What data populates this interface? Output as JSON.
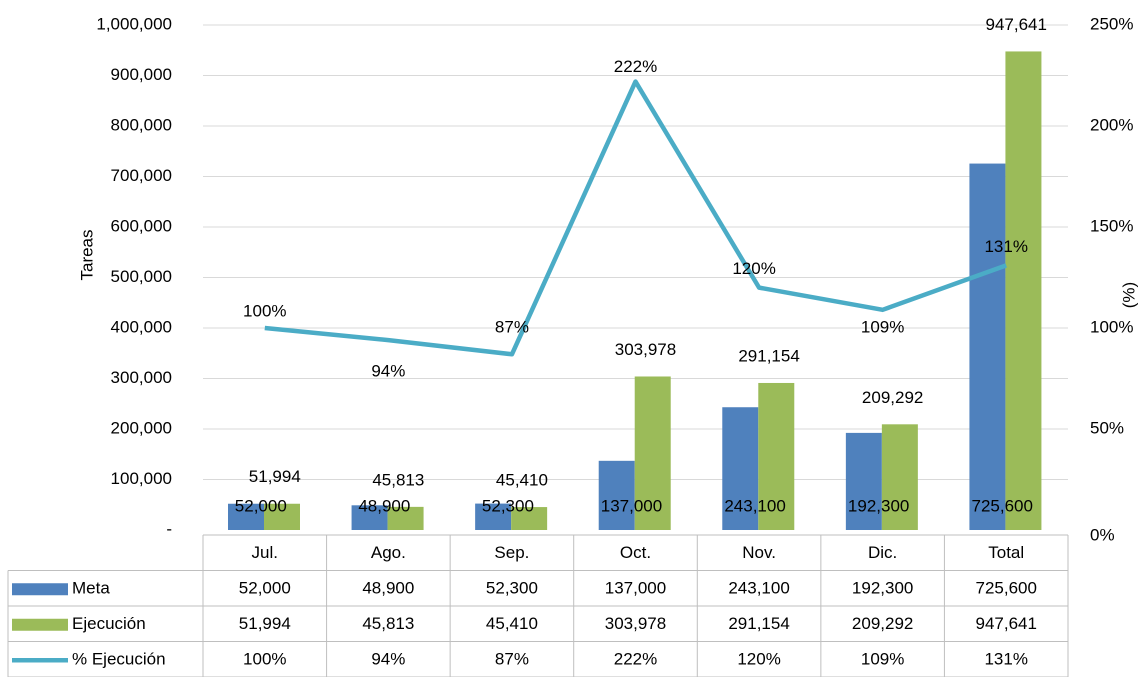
{
  "chart_data": {
    "type": "bar",
    "y_label": "Tareas",
    "y2_label": "(%)",
    "categories": [
      "Jul.",
      "Ago.",
      "Sep.",
      "Oct.",
      "Nov.",
      "Dic.",
      "Total"
    ],
    "series": [
      {
        "name": "Meta",
        "color": "#4f81bd",
        "type": "bar",
        "values": [
          52000,
          48900,
          52300,
          137000,
          243100,
          192300,
          725600
        ],
        "value_labels": [
          "52,000",
          "48,900",
          "52,300",
          "137,000",
          "243,100",
          "192,300",
          "725,600"
        ]
      },
      {
        "name": "Ejecución",
        "color": "#9bbb59",
        "type": "bar",
        "values": [
          51994,
          45813,
          45410,
          303978,
          291154,
          209292,
          947641
        ],
        "value_labels": [
          "51,994",
          "45,813",
          "45,410",
          "303,978",
          "291,154",
          "209,292",
          "947,641"
        ]
      },
      {
        "name": "% Ejecución",
        "color": "#4bacc6",
        "type": "line",
        "axis": "y2",
        "values": [
          100,
          94,
          87,
          222,
          120,
          109,
          131
        ],
        "value_labels": [
          "100%",
          "94%",
          "87%",
          "222%",
          "120%",
          "109%",
          "131%"
        ]
      }
    ],
    "ylim": [
      0,
      1000000
    ],
    "yticks": [
      {
        "value": 0,
        "label": "-"
      },
      {
        "value": 100000,
        "label": "100,000"
      },
      {
        "value": 200000,
        "label": "200,000"
      },
      {
        "value": 300000,
        "label": "300,000"
      },
      {
        "value": 400000,
        "label": "400,000"
      },
      {
        "value": 500000,
        "label": "500,000"
      },
      {
        "value": 600000,
        "label": "600,000"
      },
      {
        "value": 700000,
        "label": "700,000"
      },
      {
        "value": 800000,
        "label": "800,000"
      },
      {
        "value": 900000,
        "label": "900,000"
      },
      {
        "value": 1000000,
        "label": "1,000,000"
      }
    ],
    "y2lim": [
      0,
      250
    ],
    "y2ticks": [
      {
        "value": 0,
        "label": "0%"
      },
      {
        "value": 50,
        "label": "50%"
      },
      {
        "value": 100,
        "label": "100%"
      },
      {
        "value": 150,
        "label": "150%"
      },
      {
        "value": 200,
        "label": "200%"
      },
      {
        "value": 250,
        "label": "250%"
      }
    ],
    "grid": true,
    "data_table": true
  }
}
